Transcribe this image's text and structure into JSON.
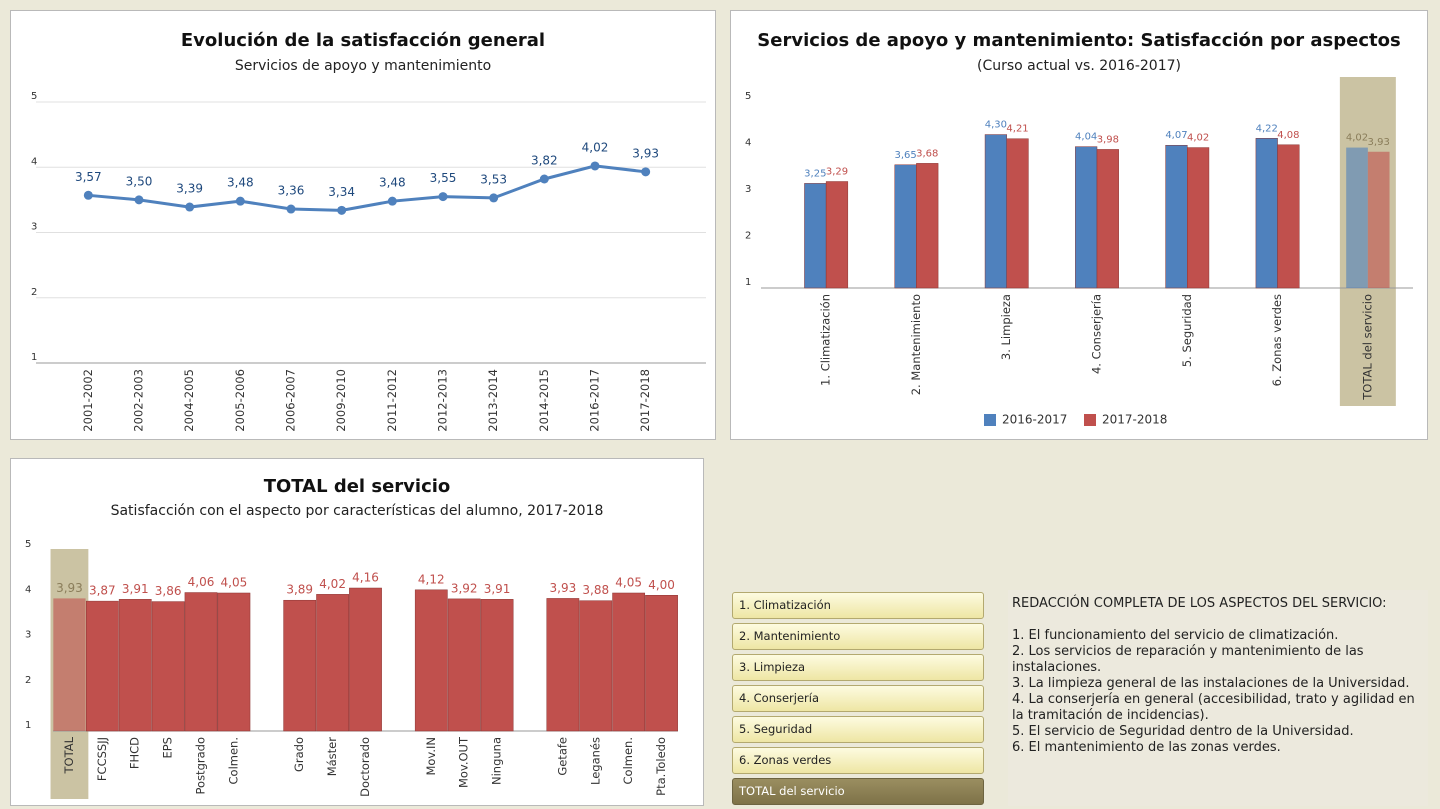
{
  "chart_data": [
    {
      "type": "line",
      "title": "Evolución de la satisfacción general",
      "subtitle": "Servicios de apoyo y mantenimiento",
      "categories": [
        "2001-2002",
        "2002-2003",
        "2004-2005",
        "2005-2006",
        "2006-2007",
        "2009-2010",
        "2011-2012",
        "2012-2013",
        "2013-2014",
        "2014-2015",
        "2016-2017",
        "2017-2018"
      ],
      "values": [
        3.57,
        3.5,
        3.39,
        3.48,
        3.36,
        3.34,
        3.48,
        3.55,
        3.53,
        3.82,
        4.02,
        3.93
      ],
      "value_labels": [
        "3,57",
        "3,50",
        "3,39",
        "3,48",
        "3,36",
        "3,34",
        "3,48",
        "3,55",
        "3,53",
        "3,82",
        "4,02",
        "3,93"
      ],
      "color": "#4f81bd",
      "ylim": [
        1,
        5
      ],
      "yticks": [
        1,
        2,
        3,
        4,
        5
      ],
      "grid": true
    },
    {
      "type": "bar",
      "title": "Servicios de apoyo y mantenimiento: Satisfacción por aspectos",
      "subtitle": "(Curso actual vs. 2016-2017)",
      "categories": [
        "1. Climatización",
        "2. Mantenimiento",
        "3. Limpieza",
        "4. Conserjería",
        "5. Seguridad",
        "6. Zonas verdes",
        "TOTAL del servicio"
      ],
      "series": [
        {
          "name": "2016-2017",
          "color": "#4f81bd",
          "values": [
            3.25,
            3.65,
            4.3,
            4.04,
            4.07,
            4.22,
            4.02
          ],
          "value_labels": [
            "3,25",
            "3,65",
            "4,30",
            "4,04",
            "4,07",
            "4,22",
            "4,02"
          ]
        },
        {
          "name": "2017-2018",
          "color": "#c0504d",
          "values": [
            3.29,
            3.68,
            4.21,
            3.98,
            4.02,
            4.08,
            3.93
          ],
          "value_labels": [
            "3,29",
            "3,68",
            "4,21",
            "3,98",
            "4,02",
            "4,08",
            "3,93"
          ]
        }
      ],
      "ylim": [
        1,
        5
      ],
      "yticks": [
        1,
        2,
        3,
        4,
        5
      ],
      "grid": false,
      "legend": "bottom",
      "highlighted": 6
    },
    {
      "type": "bar",
      "title": "TOTAL del servicio",
      "subtitle": "Satisfacción con el aspecto por características del alumno, 2017-2018",
      "categories": [
        "TOTAL",
        "FCCSSJJ",
        "FHCD",
        "EPS",
        "Postgrado",
        "Colmen.",
        null,
        "Grado",
        "Máster",
        "Doctorado",
        null,
        "Mov.IN",
        "Mov.OUT",
        "Ninguna",
        null,
        "Getafe",
        "Leganés",
        "Colmen.",
        "Pta.Toledo"
      ],
      "values": [
        3.93,
        3.87,
        3.91,
        3.86,
        4.06,
        4.05,
        null,
        3.89,
        4.02,
        4.16,
        null,
        4.12,
        3.92,
        3.91,
        null,
        3.93,
        3.88,
        4.05,
        4.0
      ],
      "value_labels": [
        "3,93",
        "3,87",
        "3,91",
        "3,86",
        "4,06",
        "4,05",
        null,
        "3,89",
        "4,02",
        "4,16",
        null,
        "4,12",
        "3,92",
        "3,91",
        null,
        "3,93",
        "3,88",
        "4,05",
        "4,00"
      ],
      "color": "#c0504d",
      "ylim": [
        1,
        5
      ],
      "yticks": [
        1,
        2,
        3,
        4,
        5
      ],
      "grid": false,
      "highlighted": 0
    }
  ],
  "buttons": {
    "items": [
      "1. Climatización",
      "2. Mantenimiento",
      "3. Limpieza",
      "4. Conserjería",
      "5. Seguridad",
      "6. Zonas verdes",
      "TOTAL del servicio"
    ],
    "selected": 6
  },
  "description": {
    "title": "REDACCIÓN COMPLETA DE LOS ASPECTOS DEL SERVICIO:",
    "items": [
      "1. El funcionamiento del servicio de climatización.",
      "2. Los servicios de reparación y mantenimiento de las instalaciones.",
      "3. La limpieza general de las instalaciones de la Universidad.",
      "4. La conserjería en general (accesibilidad, trato y agilidad en la tramitación de incidencias).",
      "5. El servicio de Seguridad dentro de la Universidad.",
      "6. El mantenimiento de las zonas verdes."
    ]
  }
}
